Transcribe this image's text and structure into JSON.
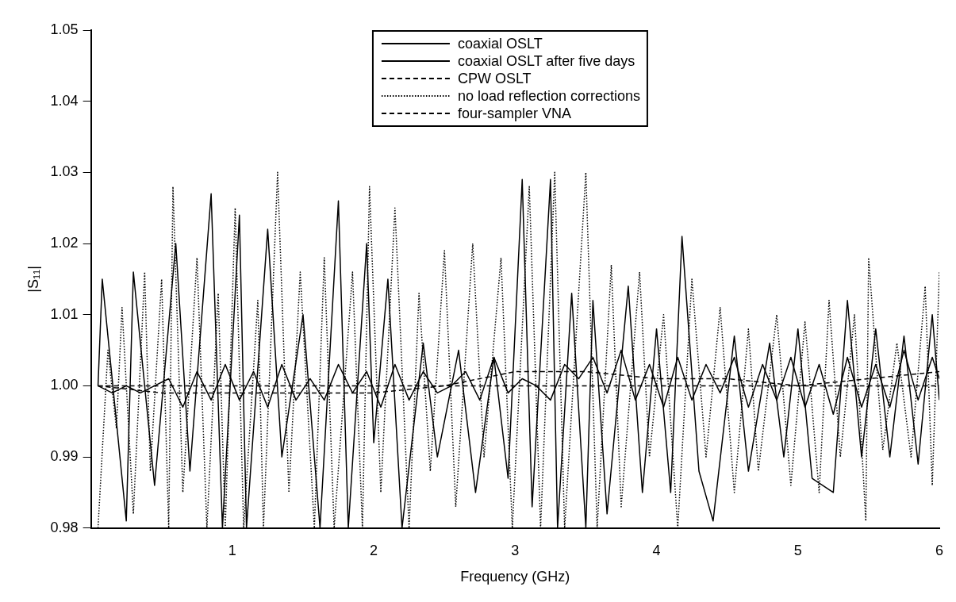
{
  "chart_data": {
    "type": "line",
    "xlabel": "Frequency (GHz)",
    "ylabel": "|S₁₁|",
    "xlim": [
      0,
      6
    ],
    "xticks": [
      1,
      2,
      3,
      4,
      5,
      6
    ],
    "ylim": [
      0.98,
      1.05
    ],
    "yticks": [
      {
        "value": 0.98,
        "label": "0.98"
      },
      {
        "value": 0.99,
        "label": "0.99"
      },
      {
        "value": 1,
        "label": "1.00"
      },
      {
        "value": 1.01,
        "label": "1.01"
      },
      {
        "value": 1.02,
        "label": "1.02"
      },
      {
        "value": 1.03,
        "label": "1.03"
      },
      {
        "value": 1.04,
        "label": "1.04"
      },
      {
        "value": 1.05,
        "label": "1.05"
      }
    ],
    "grid": false,
    "legend": "top",
    "marker": "none",
    "series": [
      {
        "name": "coaxial OSLT",
        "color": "#000000",
        "line_style": "solid",
        "x": [
          0.05,
          0.15,
          0.25,
          0.35,
          0.45,
          0.55,
          0.65,
          0.75,
          0.85,
          0.95,
          1.05,
          1.15,
          1.25,
          1.35,
          1.45,
          1.55,
          1.65,
          1.75,
          1.85,
          1.95,
          2.05,
          2.15,
          2.25,
          2.35,
          2.45,
          2.55,
          2.65,
          2.75,
          2.85,
          2.95,
          3.05,
          3.15,
          3.25,
          3.35,
          3.45,
          3.55,
          3.65,
          3.75,
          3.85,
          3.95,
          4.05,
          4.15,
          4.25,
          4.35,
          4.45,
          4.55,
          4.65,
          4.75,
          4.85,
          4.95,
          5.05,
          5.15,
          5.25,
          5.35,
          5.45,
          5.55,
          5.65,
          5.75,
          5.85,
          5.95,
          6.0
        ],
        "values": [
          1.0,
          0.999,
          1.0,
          0.999,
          1.0,
          1.001,
          0.997,
          1.002,
          0.998,
          1.003,
          0.998,
          1.002,
          0.997,
          1.003,
          0.998,
          1.001,
          0.998,
          1.003,
          0.999,
          1.002,
          0.997,
          1.003,
          0.998,
          1.002,
          0.999,
          1.0,
          1.002,
          0.998,
          1.004,
          0.999,
          1.001,
          1.0,
          0.998,
          1.003,
          1.001,
          1.004,
          0.999,
          1.005,
          0.998,
          1.003,
          0.997,
          1.004,
          0.998,
          1.003,
          0.999,
          1.004,
          0.997,
          1.003,
          0.998,
          1.004,
          0.997,
          1.003,
          0.996,
          1.004,
          0.997,
          1.003,
          0.997,
          1.005,
          0.998,
          1.004,
          1.001
        ]
      },
      {
        "name": "coaxial OSLT after five days",
        "color": "#000000",
        "line_style": "solid",
        "x": [
          0.05,
          0.08,
          0.25,
          0.3,
          0.45,
          0.6,
          0.7,
          0.85,
          0.93,
          1.05,
          1.1,
          1.25,
          1.35,
          1.5,
          1.62,
          1.75,
          1.82,
          1.95,
          2.0,
          2.1,
          2.2,
          2.35,
          2.45,
          2.6,
          2.72,
          2.85,
          2.95,
          3.05,
          3.12,
          3.25,
          3.3,
          3.4,
          3.5,
          3.55,
          3.65,
          3.8,
          3.9,
          4.0,
          4.1,
          4.18,
          4.3,
          4.4,
          4.55,
          4.65,
          4.8,
          4.9,
          5.0,
          5.1,
          5.25,
          5.35,
          5.45,
          5.55,
          5.65,
          5.75,
          5.85,
          5.95,
          6.0
        ],
        "values": [
          1.0,
          1.015,
          0.981,
          1.016,
          0.986,
          1.02,
          0.988,
          1.027,
          0.98,
          1.024,
          0.98,
          1.022,
          0.99,
          1.01,
          0.98,
          1.026,
          0.98,
          1.02,
          0.992,
          1.015,
          0.98,
          1.006,
          0.99,
          1.005,
          0.985,
          1.004,
          0.987,
          1.029,
          0.983,
          1.029,
          0.98,
          1.013,
          0.98,
          1.012,
          0.982,
          1.014,
          0.985,
          1.008,
          0.985,
          1.021,
          0.988,
          0.981,
          1.007,
          0.988,
          1.006,
          0.99,
          1.008,
          0.987,
          0.985,
          1.012,
          0.99,
          1.008,
          0.99,
          1.007,
          0.989,
          1.01,
          0.998
        ]
      },
      {
        "name": "CPW OSLT",
        "color": "#000000",
        "line_style": "dashed",
        "x": [
          0.05,
          0.5,
          1.0,
          1.5,
          2.0,
          2.5,
          3.0,
          3.5,
          4.0,
          4.5,
          5.0,
          5.5,
          6.0
        ],
        "values": [
          1.0,
          0.999,
          0.999,
          0.999,
          0.999,
          1.0,
          1.002,
          1.002,
          1.001,
          1.001,
          1.0,
          1.001,
          1.002
        ]
      },
      {
        "name": "no load reflection corrections",
        "color": "#000000",
        "line_style": "dotted",
        "x": [
          0.05,
          0.12,
          0.18,
          0.22,
          0.3,
          0.38,
          0.42,
          0.5,
          0.55,
          0.58,
          0.65,
          0.75,
          0.82,
          0.9,
          0.95,
          1.02,
          1.08,
          1.18,
          1.22,
          1.32,
          1.4,
          1.48,
          1.58,
          1.65,
          1.72,
          1.85,
          1.92,
          1.97,
          2.05,
          2.15,
          2.25,
          2.32,
          2.4,
          2.5,
          2.58,
          2.7,
          2.78,
          2.9,
          2.98,
          3.1,
          3.18,
          3.28,
          3.35,
          3.5,
          3.58,
          3.68,
          3.75,
          3.88,
          3.95,
          4.05,
          4.15,
          4.25,
          4.35,
          4.45,
          4.55,
          4.65,
          4.72,
          4.85,
          4.95,
          5.05,
          5.15,
          5.22,
          5.3,
          5.4,
          5.48,
          5.5,
          5.6,
          5.7,
          5.8,
          5.9,
          5.95,
          6.0
        ],
        "values": [
          0.98,
          1.005,
          0.994,
          1.011,
          0.982,
          1.016,
          0.988,
          1.015,
          0.98,
          1.028,
          0.985,
          1.018,
          0.98,
          1.013,
          0.98,
          1.025,
          0.98,
          1.012,
          0.98,
          1.03,
          0.985,
          1.016,
          0.98,
          1.018,
          0.98,
          1.016,
          0.98,
          1.028,
          0.985,
          1.025,
          0.98,
          1.013,
          0.988,
          1.019,
          0.983,
          1.02,
          0.99,
          1.018,
          0.98,
          1.028,
          0.98,
          1.03,
          0.98,
          1.03,
          0.98,
          1.017,
          0.983,
          1.016,
          0.99,
          1.01,
          0.98,
          1.015,
          0.99,
          1.011,
          0.985,
          1.008,
          0.988,
          1.01,
          0.986,
          1.009,
          0.985,
          1.012,
          0.99,
          1.01,
          0.981,
          1.018,
          0.991,
          1.006,
          0.99,
          1.014,
          0.986,
          1.016
        ]
      },
      {
        "name": "four-sampler VNA",
        "color": "#000000",
        "line_style": "dashed",
        "x": [
          0.05,
          1.0,
          2.0,
          3.0,
          4.0,
          5.0,
          6.0
        ],
        "values": [
          1.0,
          1.0,
          1.0,
          1.0,
          1.0,
          1.0,
          1.0
        ]
      }
    ]
  }
}
